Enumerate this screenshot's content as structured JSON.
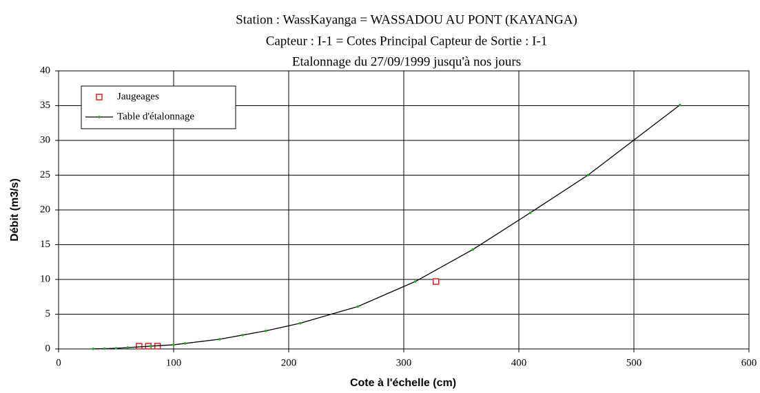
{
  "chart_data": {
    "type": "scatter",
    "title": "Station : WassKayanga = WASSADOU AU PONT   (KAYANGA)",
    "subtitle": "Capteur : I-1 = Cotes Principal     Capteur de Sortie : I-1",
    "subtitle2": "Etalonnage du 27/09/1999 jusqu'à nos jours",
    "x_label": "Cote à l'échelle (cm)",
    "y_label": "Débit (m3/s)",
    "xlim": [
      0,
      600
    ],
    "xticks": [
      0,
      100,
      200,
      300,
      400,
      500,
      600
    ],
    "ylim": [
      0,
      40
    ],
    "yticks": [
      0,
      5,
      10,
      15,
      20,
      25,
      30,
      35,
      40
    ],
    "grid": true,
    "legend": "top-left",
    "series": [
      {
        "name": "Jaugeages",
        "style": "markers",
        "color": "#e02020",
        "x": [
          70,
          78,
          86,
          328
        ],
        "values": [
          0.4,
          0.4,
          0.4,
          9.7
        ]
      },
      {
        "name": "Table d'étalonnage",
        "style": "line",
        "color": "#000000",
        "marker_color": "#22aa22",
        "x": [
          30,
          40,
          50,
          60,
          80,
          100,
          110,
          140,
          160,
          180,
          210,
          260,
          310,
          360,
          410,
          460,
          540
        ],
        "values": [
          0.02,
          0.05,
          0.1,
          0.2,
          0.4,
          0.6,
          0.8,
          1.4,
          2.0,
          2.6,
          3.7,
          6.1,
          9.7,
          14.3,
          19.6,
          25.0,
          35.1
        ]
      }
    ]
  }
}
